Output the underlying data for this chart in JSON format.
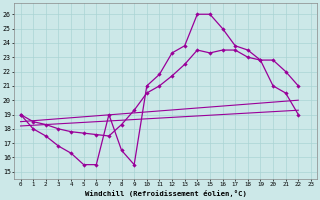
{
  "xlabel": "Windchill (Refroidissement éolien,°C)",
  "xlim": [
    -0.5,
    23.5
  ],
  "ylim": [
    14.5,
    26.8
  ],
  "yticks": [
    15,
    16,
    17,
    18,
    19,
    20,
    21,
    22,
    23,
    24,
    25,
    26
  ],
  "xticks": [
    0,
    1,
    2,
    3,
    4,
    5,
    6,
    7,
    8,
    9,
    10,
    11,
    12,
    13,
    14,
    15,
    16,
    17,
    18,
    19,
    20,
    21,
    22,
    23
  ],
  "bg_color": "#cce8e8",
  "grid_color": "#aad4d4",
  "line_color": "#990099",
  "curve1_x": [
    0,
    1,
    2,
    3,
    4,
    5,
    6,
    7,
    8,
    9,
    10,
    11,
    12,
    13,
    14,
    15,
    16,
    17,
    18,
    19,
    20,
    21,
    22
  ],
  "curve1_y": [
    19.0,
    18.0,
    17.5,
    16.8,
    16.3,
    15.5,
    15.5,
    19.0,
    16.5,
    15.5,
    21.0,
    21.8,
    23.3,
    23.8,
    26.0,
    26.0,
    25.0,
    23.8,
    23.5,
    22.8,
    21.0,
    20.5,
    19.0
  ],
  "curve2_x": [
    0,
    1,
    2,
    3,
    4,
    5,
    6,
    7,
    8,
    9,
    10,
    11,
    12,
    13,
    14,
    15,
    16,
    17,
    18,
    19,
    20,
    21,
    22
  ],
  "curve2_y": [
    19.0,
    18.5,
    18.3,
    18.0,
    17.8,
    17.7,
    17.6,
    17.5,
    18.3,
    19.3,
    20.5,
    21.0,
    21.7,
    22.5,
    23.5,
    23.3,
    23.5,
    23.5,
    23.0,
    22.8,
    22.8,
    22.0,
    21.0
  ],
  "line3_x": [
    0,
    22
  ],
  "line3_y": [
    18.5,
    20.0
  ],
  "line4_x": [
    0,
    22
  ],
  "line4_y": [
    18.2,
    19.3
  ]
}
